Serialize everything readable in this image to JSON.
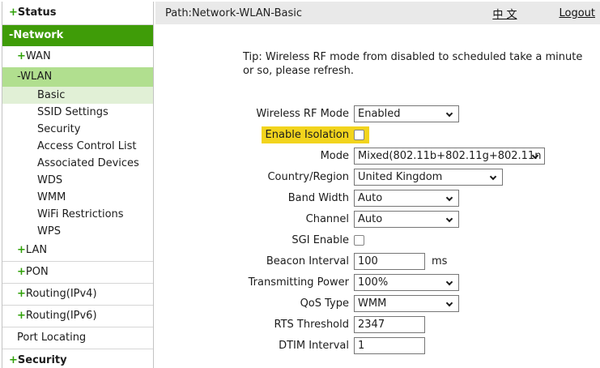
{
  "topbar": {
    "path": "Path:Network-WLAN-Basic",
    "lang_link": "中 文",
    "logout_link": "Logout"
  },
  "sidebar": {
    "items": [
      {
        "prefix": "+",
        "label": "Status"
      },
      {
        "prefix": "-",
        "label": "Network"
      },
      {
        "prefix": "+",
        "label": "WAN"
      },
      {
        "prefix": "-",
        "label": "WLAN"
      },
      {
        "label": "Basic"
      },
      {
        "label": "SSID Settings"
      },
      {
        "label": "Security"
      },
      {
        "label": "Access Control List"
      },
      {
        "label": "Associated Devices"
      },
      {
        "label": "WDS"
      },
      {
        "label": "WMM"
      },
      {
        "label": "WiFi Restrictions"
      },
      {
        "label": "WPS"
      },
      {
        "prefix": "+",
        "label": "LAN"
      },
      {
        "prefix": "+",
        "label": "PON"
      },
      {
        "prefix": "+",
        "label": "Routing(IPv4)"
      },
      {
        "prefix": "+",
        "label": "Routing(IPv6)"
      },
      {
        "label": "Port Locating"
      },
      {
        "prefix": "+",
        "label": "Security"
      }
    ]
  },
  "main": {
    "tip": "Tip: Wireless RF mode from disabled to scheduled take a minute\nor so, please refresh.",
    "fields": [
      {
        "label": "Wireless RF Mode",
        "type": "select",
        "value": "Enabled"
      },
      {
        "label": "Enable Isolation",
        "type": "checkbox",
        "checked": false,
        "highlighted": true
      },
      {
        "label": "Mode",
        "type": "select",
        "value": "Mixed(802.11b+802.11g+802.11n"
      },
      {
        "label": "Country/Region",
        "type": "select",
        "value": "United Kingdom"
      },
      {
        "label": "Band Width",
        "type": "select",
        "value": "Auto"
      },
      {
        "label": "Channel",
        "type": "select",
        "value": "Auto"
      },
      {
        "label": "SGI Enable",
        "type": "checkbox",
        "checked": false
      },
      {
        "label": "Beacon Interval",
        "type": "text",
        "value": "100",
        "suffix": "ms"
      },
      {
        "label": "Transmitting Power",
        "type": "select",
        "value": "100%"
      },
      {
        "label": "QoS Type",
        "type": "select",
        "value": "WMM"
      },
      {
        "label": "RTS Threshold",
        "type": "text",
        "value": "2347"
      },
      {
        "label": "DTIM Interval",
        "type": "text",
        "value": "1"
      }
    ]
  },
  "colors": {
    "accent_green": "#3f9c08",
    "submenu_green": "#b1df8f",
    "selected_green": "#e1f0d6",
    "plus_green": "#2ea006",
    "highlight_yellow": "#f2d41d",
    "topbar_gray": "#e9e9e9"
  }
}
